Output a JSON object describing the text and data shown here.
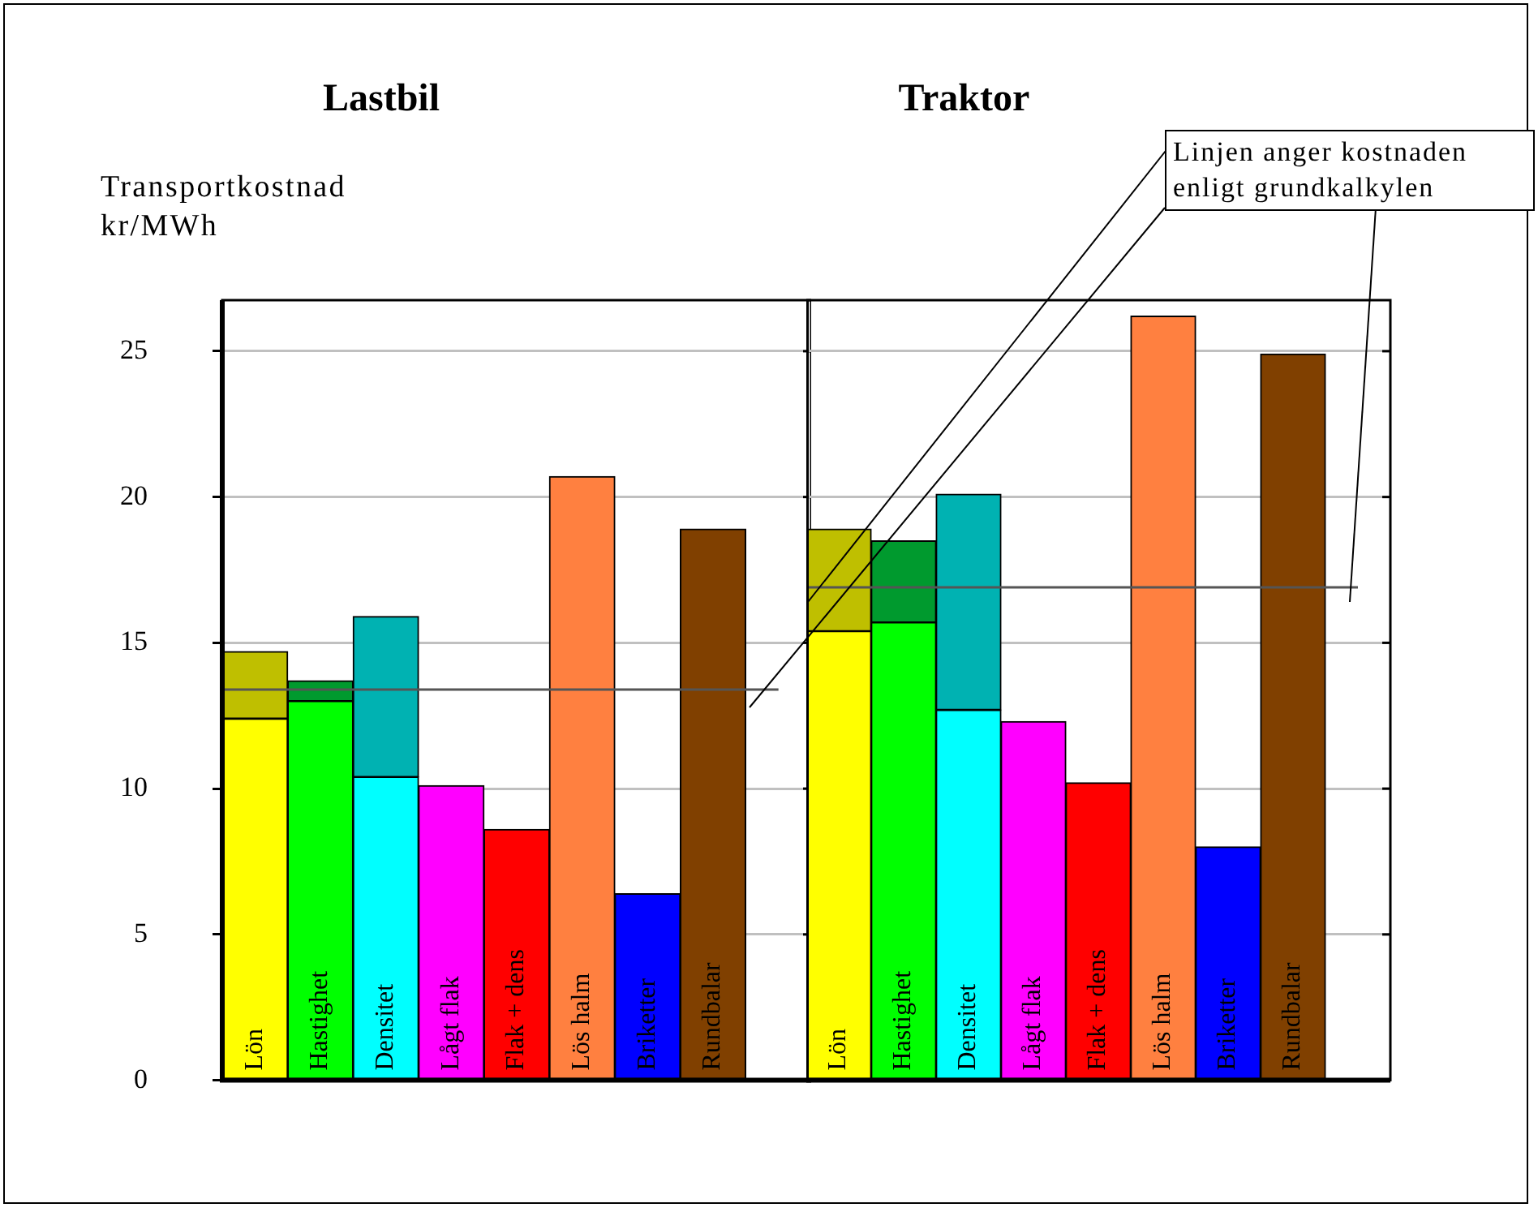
{
  "chart_data": [
    {
      "type": "bar",
      "title": "Lastbil",
      "ylabel": "Transportkostnad kr/MWh",
      "categories": [
        "Lön",
        "Hastighet",
        "Densitet",
        "Lågt flak",
        "Flak + dens",
        "Lös halm",
        "Briketter",
        "Rundbalar",
        null
      ],
      "stacked": true,
      "series": [
        {
          "colors": [
            "#ffff00",
            "#00ff00",
            "#00ffff",
            "#ff00ff",
            "#ff0000",
            "#ff8040",
            "#0000ff",
            "#804000",
            null
          ],
          "values": [
            12.4,
            13.0,
            10.4,
            10.1,
            8.6,
            20.7,
            6.4,
            18.9,
            null
          ]
        },
        {
          "colors": [
            "#bfbf00",
            "#009a2e",
            "#00b2b2",
            null,
            null,
            null,
            null,
            null,
            null
          ],
          "values": [
            2.3,
            0.7,
            5.5,
            null,
            null,
            null,
            null,
            null,
            null
          ]
        }
      ],
      "ylim": [
        0,
        26.75
      ],
      "yticks": [
        0,
        5,
        10,
        15,
        20,
        25
      ],
      "grid": "y",
      "tick_labels": "y",
      "legend": false,
      "ref_lines": [
        {
          "axis": "y",
          "value": 13.4,
          "color": "#555555"
        }
      ]
    },
    {
      "type": "bar",
      "title": "Traktor",
      "categories": [
        "Lön",
        "Hastighet",
        "Densitet",
        "Lågt flak",
        "Flak + dens",
        "Lös halm",
        "Briketter",
        "Rundbalar",
        null
      ],
      "stacked": true,
      "series": [
        {
          "colors": [
            "#ffff00",
            "#00ff00",
            "#00ffff",
            "#ff00ff",
            "#ff0000",
            "#ff8040",
            "#0000ff",
            "#804000",
            null
          ],
          "values": [
            15.4,
            15.7,
            12.7,
            12.3,
            10.2,
            26.2,
            8.0,
            24.9,
            null
          ]
        },
        {
          "colors": [
            "#bfbf00",
            "#009a2e",
            "#00b2b2",
            null,
            null,
            null,
            null,
            null,
            null
          ],
          "values": [
            3.5,
            2.8,
            7.4,
            null,
            null,
            null,
            null,
            null,
            null
          ]
        }
      ],
      "ylim": [
        0,
        26.75
      ],
      "yticks": [
        0,
        5,
        10,
        15,
        20,
        25
      ],
      "grid": "y",
      "tick_labels": false,
      "legend": false,
      "ref_lines": [
        {
          "axis": "y",
          "value": 16.9,
          "color": "#555555"
        }
      ],
      "annotations": [
        "Linjen anger kostnaden enligt grundkalkylen"
      ]
    }
  ]
}
